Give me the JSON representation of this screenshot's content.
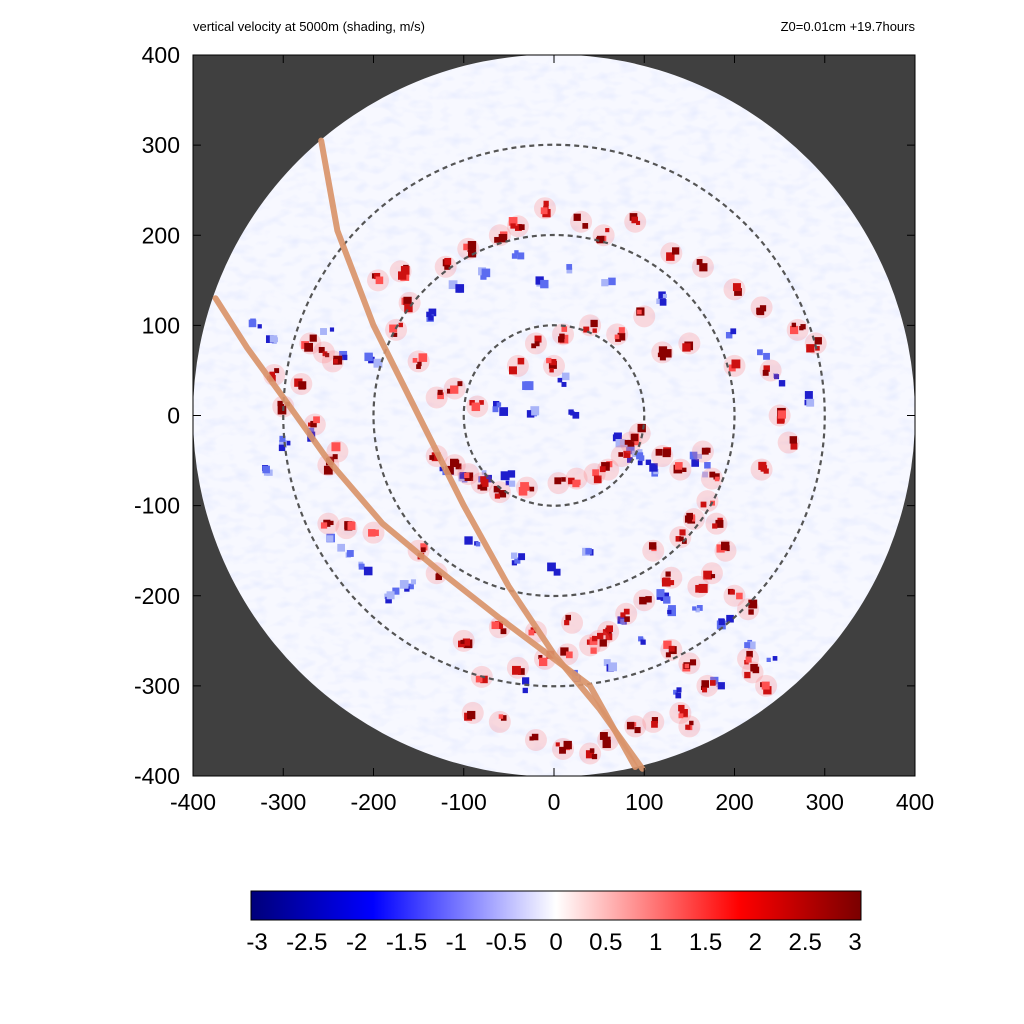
{
  "title_left": "vertical velocity at 5000m (shading, m/s)",
  "title_right": "Z0=0.01cm  +19.7hours",
  "chart_data": {
    "type": "heatmap",
    "field": "vertical velocity at 5000m",
    "units": "m/s",
    "xlim": [
      -400,
      400
    ],
    "ylim": [
      -400,
      400
    ],
    "x_ticks": [
      -400,
      -300,
      -200,
      -100,
      0,
      100,
      200,
      300,
      400
    ],
    "y_ticks": [
      -400,
      -300,
      -200,
      -100,
      0,
      100,
      200,
      300,
      400
    ],
    "domain_radius": 400,
    "outside_domain_color": "#404040",
    "range_rings": [
      100,
      200,
      300
    ],
    "colorbar": {
      "range": [
        -3,
        3
      ],
      "ticks": [
        "-3",
        "-2.5",
        "-2",
        "-1.5",
        "-1",
        "-0.5",
        "0",
        "0.5",
        "1",
        "1.5",
        "2",
        "2.5",
        "3"
      ],
      "colors": [
        "#00007a",
        "#0000ff",
        "#ffffff",
        "#ff0000",
        "#7a0000"
      ]
    },
    "tracks": [
      {
        "color": "#d9946a",
        "points": [
          [
            -258,
            305
          ],
          [
            -240,
            205
          ],
          [
            -200,
            100
          ],
          [
            -150,
            0
          ],
          [
            -100,
            -100
          ],
          [
            -50,
            -190
          ],
          [
            0,
            -265
          ],
          [
            50,
            -325
          ],
          [
            98,
            -392
          ]
        ]
      },
      {
        "color": "#d9946a",
        "points": [
          [
            -375,
            130
          ],
          [
            -340,
            75
          ],
          [
            -300,
            20
          ],
          [
            -250,
            -50
          ],
          [
            -190,
            -120
          ],
          [
            -130,
            -170
          ],
          [
            -60,
            -225
          ],
          [
            0,
            -270
          ],
          [
            40,
            -300
          ],
          [
            90,
            -390
          ]
        ]
      }
    ],
    "updraft_cells": [
      [
        -270,
        80
      ],
      [
        -255,
        70
      ],
      [
        -245,
        60
      ],
      [
        -280,
        35
      ],
      [
        -310,
        45
      ],
      [
        -300,
        10
      ],
      [
        -265,
        -10
      ],
      [
        -250,
        -55
      ],
      [
        -240,
        -40
      ],
      [
        -195,
        150
      ],
      [
        -170,
        160
      ],
      [
        -175,
        95
      ],
      [
        -150,
        60
      ],
      [
        -130,
        20
      ],
      [
        -110,
        30
      ],
      [
        -85,
        10
      ],
      [
        -160,
        125
      ],
      [
        -120,
        165
      ],
      [
        -95,
        185
      ],
      [
        -60,
        200
      ],
      [
        -40,
        210
      ],
      [
        -10,
        230
      ],
      [
        30,
        215
      ],
      [
        55,
        200
      ],
      [
        90,
        215
      ],
      [
        130,
        180
      ],
      [
        165,
        165
      ],
      [
        200,
        140
      ],
      [
        230,
        120
      ],
      [
        270,
        95
      ],
      [
        290,
        80
      ],
      [
        -130,
        -45
      ],
      [
        -110,
        -55
      ],
      [
        -95,
        -65
      ],
      [
        -80,
        -75
      ],
      [
        -60,
        -85
      ],
      [
        -30,
        -80
      ],
      [
        5,
        -75
      ],
      [
        25,
        -70
      ],
      [
        45,
        -65
      ],
      [
        60,
        -60
      ],
      [
        75,
        -45
      ],
      [
        85,
        -30
      ],
      [
        95,
        -20
      ],
      [
        120,
        -45
      ],
      [
        140,
        -60
      ],
      [
        165,
        -40
      ],
      [
        175,
        -70
      ],
      [
        170,
        -95
      ],
      [
        155,
        -115
      ],
      [
        140,
        -135
      ],
      [
        180,
        -120
      ],
      [
        190,
        -150
      ],
      [
        175,
        -175
      ],
      [
        160,
        -190
      ],
      [
        130,
        -180
      ],
      [
        110,
        -150
      ],
      [
        100,
        -205
      ],
      [
        80,
        -220
      ],
      [
        60,
        -240
      ],
      [
        40,
        -255
      ],
      [
        15,
        -265
      ],
      [
        -10,
        -270
      ],
      [
        -40,
        -280
      ],
      [
        -80,
        -290
      ],
      [
        -130,
        -175
      ],
      [
        -150,
        -150
      ],
      [
        -200,
        -130
      ],
      [
        -230,
        -125
      ],
      [
        -250,
        -120
      ],
      [
        -100,
        -250
      ],
      [
        -60,
        -235
      ],
      [
        -20,
        -240
      ],
      [
        20,
        -230
      ],
      [
        50,
        -250
      ],
      [
        200,
        -200
      ],
      [
        215,
        -215
      ],
      [
        215,
        -270
      ],
      [
        220,
        -285
      ],
      [
        235,
        -300
      ],
      [
        130,
        -260
      ],
      [
        150,
        -275
      ],
      [
        170,
        -300
      ],
      [
        140,
        -330
      ],
      [
        110,
        -340
      ],
      [
        150,
        -345
      ],
      [
        -90,
        -330
      ],
      [
        -60,
        -340
      ],
      [
        -20,
        -360
      ],
      [
        10,
        -370
      ],
      [
        40,
        -375
      ],
      [
        60,
        -360
      ],
      [
        90,
        -345
      ],
      [
        200,
        55
      ],
      [
        240,
        50
      ],
      [
        250,
        0
      ],
      [
        260,
        -30
      ],
      [
        230,
        -60
      ],
      [
        120,
        70
      ],
      [
        150,
        80
      ],
      [
        100,
        110
      ],
      [
        -20,
        80
      ],
      [
        10,
        90
      ],
      [
        40,
        100
      ],
      [
        70,
        90
      ],
      [
        -40,
        55
      ],
      [
        0,
        55
      ]
    ],
    "downdraft_cells": [
      [
        -250,
        90
      ],
      [
        -230,
        70
      ],
      [
        -200,
        60
      ],
      [
        -270,
        -20
      ],
      [
        -120,
        -60
      ],
      [
        -100,
        -70
      ],
      [
        -75,
        -65
      ],
      [
        -50,
        -70
      ],
      [
        80,
        -35
      ],
      [
        90,
        -45
      ],
      [
        100,
        -50
      ],
      [
        70,
        -25
      ],
      [
        110,
        -60
      ],
      [
        160,
        -50
      ],
      [
        170,
        -60
      ],
      [
        -60,
        10
      ],
      [
        -20,
        5
      ],
      [
        20,
        0
      ],
      [
        10,
        40
      ],
      [
        -30,
        30
      ],
      [
        120,
        -200
      ],
      [
        130,
        -220
      ],
      [
        160,
        -215
      ],
      [
        190,
        -230
      ],
      [
        80,
        -230
      ],
      [
        100,
        -250
      ],
      [
        60,
        -280
      ],
      [
        20,
        -290
      ],
      [
        -30,
        -300
      ],
      [
        220,
        -250
      ],
      [
        240,
        -270
      ],
      [
        180,
        -300
      ],
      [
        140,
        -310
      ],
      [
        -160,
        -190
      ],
      [
        -180,
        -200
      ],
      [
        -210,
        -170
      ],
      [
        -230,
        -150
      ],
      [
        -250,
        -140
      ],
      [
        -140,
        110
      ],
      [
        -110,
        140
      ],
      [
        -80,
        160
      ],
      [
        -40,
        180
      ],
      [
        200,
        90
      ],
      [
        230,
        70
      ],
      [
        250,
        40
      ],
      [
        280,
        20
      ],
      [
        -330,
        100
      ],
      [
        -310,
        80
      ],
      [
        -300,
        -30
      ],
      [
        -320,
        -60
      ],
      [
        120,
        130
      ],
      [
        60,
        150
      ],
      [
        20,
        160
      ],
      [
        -10,
        150
      ],
      [
        40,
        -150
      ],
      [
        0,
        -170
      ],
      [
        -40,
        -160
      ],
      [
        -90,
        -140
      ]
    ]
  }
}
